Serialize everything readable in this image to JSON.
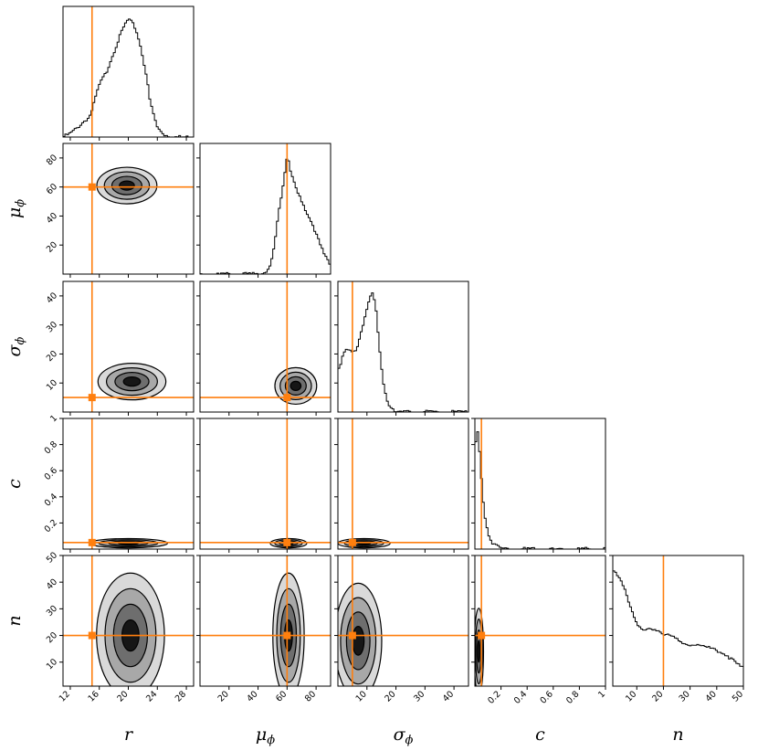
{
  "chart_data": {
    "type": "corner",
    "parameters": [
      {
        "key": "r",
        "label": "r",
        "sub": "",
        "range": [
          11,
          29
        ],
        "ticks": [
          12,
          16,
          20,
          24,
          28
        ],
        "truth": 15
      },
      {
        "key": "mu_phi",
        "label": "μ",
        "sub": "ϕ",
        "range": [
          0,
          90
        ],
        "ticks": [
          20,
          40,
          60,
          80
        ],
        "truth": 60
      },
      {
        "key": "sigma_phi",
        "label": "σ",
        "sub": "ϕ",
        "range": [
          0,
          45
        ],
        "ticks": [
          10,
          20,
          30,
          40
        ],
        "truth": 5
      },
      {
        "key": "c",
        "label": "c",
        "sub": "",
        "range": [
          0,
          1.0
        ],
        "ticks": [
          0.2,
          0.4,
          0.6,
          0.8,
          1.0
        ],
        "truth": 0.05
      },
      {
        "key": "n",
        "label": "n",
        "sub": "",
        "range": [
          1,
          50
        ],
        "ticks": [
          10,
          20,
          30,
          40,
          50
        ],
        "truth": 20
      }
    ],
    "marginals": [
      {
        "param": "r",
        "x": [
          11,
          12,
          13,
          14,
          14.5,
          15,
          15.5,
          16,
          16.5,
          17,
          17.5,
          18,
          18.5,
          19,
          19.5,
          20,
          20.5,
          21,
          21.5,
          22,
          22.5,
          23,
          24,
          25,
          26,
          27,
          28,
          29
        ],
        "density": [
          0.0,
          0.03,
          0.08,
          0.14,
          0.16,
          0.22,
          0.34,
          0.44,
          0.5,
          0.55,
          0.64,
          0.72,
          0.8,
          0.88,
          0.95,
          1.0,
          0.97,
          0.92,
          0.82,
          0.68,
          0.52,
          0.3,
          0.08,
          0.02,
          0.0,
          0.0,
          0.0,
          0.0
        ]
      },
      {
        "param": "mu_phi",
        "x": [
          0,
          40,
          45,
          48,
          50,
          52,
          54,
          56,
          58,
          60,
          61,
          62,
          63,
          65,
          68,
          72,
          76,
          80,
          85,
          90
        ],
        "density": [
          0.0,
          0.0,
          0.02,
          0.06,
          0.15,
          0.3,
          0.5,
          0.65,
          0.8,
          1.0,
          0.98,
          0.9,
          0.85,
          0.78,
          0.68,
          0.55,
          0.45,
          0.35,
          0.2,
          0.06
        ]
      },
      {
        "param": "sigma_phi",
        "x": [
          0,
          1,
          2,
          3,
          4,
          5,
          6,
          7,
          8,
          9,
          10,
          11,
          12,
          13,
          14,
          15,
          16,
          17,
          18,
          19,
          20,
          22,
          25,
          30,
          45
        ],
        "density": [
          0.37,
          0.42,
          0.5,
          0.52,
          0.52,
          0.5,
          0.52,
          0.58,
          0.68,
          0.78,
          0.88,
          0.97,
          1.0,
          0.9,
          0.62,
          0.38,
          0.2,
          0.1,
          0.05,
          0.03,
          0.01,
          0.0,
          0.0,
          0.0,
          0.0
        ]
      },
      {
        "param": "c",
        "x": [
          0.0,
          0.01,
          0.02,
          0.03,
          0.04,
          0.05,
          0.06,
          0.07,
          0.08,
          0.1,
          0.12,
          0.14,
          0.16,
          0.2,
          0.25,
          0.3,
          0.5,
          1.0
        ],
        "density": [
          0.75,
          0.97,
          1.0,
          0.92,
          0.75,
          0.6,
          0.45,
          0.34,
          0.25,
          0.15,
          0.08,
          0.05,
          0.03,
          0.01,
          0.0,
          0.0,
          0.0,
          0.0
        ]
      },
      {
        "param": "n",
        "x": [
          1,
          2,
          4,
          6,
          8,
          10,
          12,
          14,
          16,
          18,
          20,
          22,
          24,
          26,
          28,
          30,
          32,
          34,
          36,
          38,
          40,
          42,
          44,
          46,
          48,
          50
        ],
        "density": [
          1.0,
          0.97,
          0.9,
          0.78,
          0.64,
          0.54,
          0.49,
          0.48,
          0.47,
          0.46,
          0.44,
          0.45,
          0.42,
          0.37,
          0.35,
          0.35,
          0.36,
          0.35,
          0.33,
          0.32,
          0.31,
          0.28,
          0.26,
          0.22,
          0.18,
          0.15
        ]
      }
    ],
    "joint_blobs": [
      {
        "x": "r",
        "y": "mu_phi",
        "cx": 19.8,
        "cy": 61,
        "sx": 2.3,
        "sy": 7
      },
      {
        "x": "r",
        "y": "sigma_phi",
        "cx": 20.5,
        "cy": 10.5,
        "sx": 2.6,
        "sy": 3.5
      },
      {
        "x": "mu_phi",
        "y": "sigma_phi",
        "cx": 66,
        "cy": 9,
        "sx": 8,
        "sy": 3.5
      },
      {
        "x": "r",
        "y": "c",
        "cx": 20,
        "cy": 0.045,
        "sx": 3,
        "sy": 0.02
      },
      {
        "x": "mu_phi",
        "y": "c",
        "cx": 61,
        "cy": 0.045,
        "sx": 7,
        "sy": 0.02
      },
      {
        "x": "sigma_phi",
        "y": "c",
        "cx": 9,
        "cy": 0.045,
        "sx": 5,
        "sy": 0.02
      },
      {
        "x": "r",
        "y": "n",
        "cx": 20.3,
        "cy": 20,
        "sx": 2.6,
        "sy": 13
      },
      {
        "x": "mu_phi",
        "y": "n",
        "cx": 61,
        "cy": 20,
        "sx": 6,
        "sy": 13
      },
      {
        "x": "sigma_phi",
        "y": "n",
        "cx": 7,
        "cy": 18,
        "sx": 4.5,
        "sy": 12
      },
      {
        "x": "c",
        "y": "n",
        "cx": 0.03,
        "cy": 14,
        "sx": 0.02,
        "sy": 9
      }
    ],
    "truth_color": "#ff7f0e",
    "contour_levels": [
      0.5,
      1.0,
      1.5,
      2.0
    ],
    "fill_colors": [
      "#d9d9d9",
      "#a8a8a8",
      "#6e6e6e",
      "#161616"
    ]
  }
}
